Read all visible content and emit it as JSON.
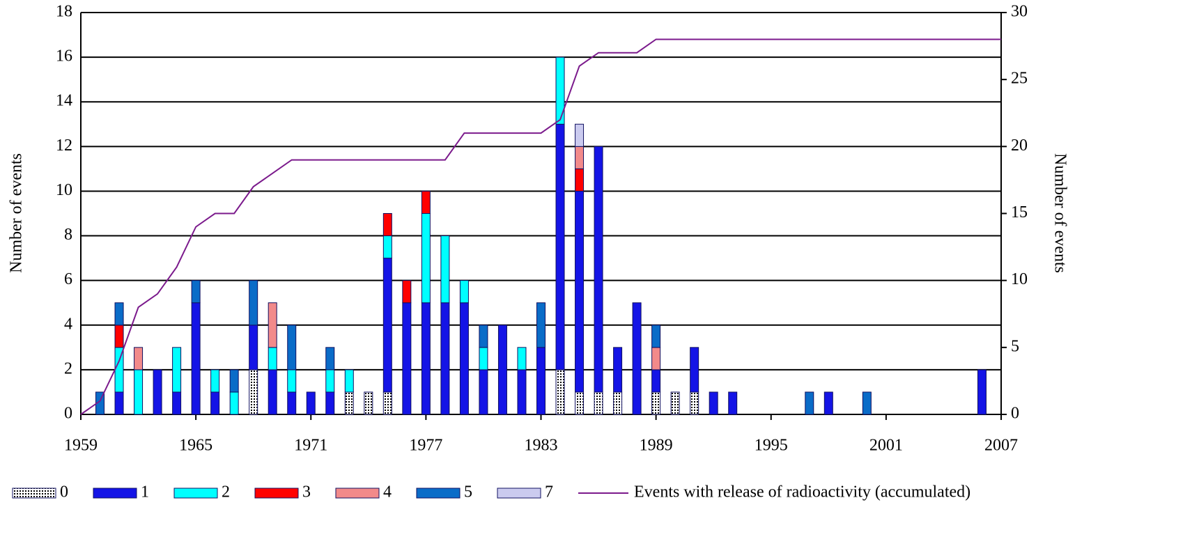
{
  "chart_data": {
    "type": "bar",
    "x": [
      1960,
      1961,
      1962,
      1963,
      1964,
      1965,
      1966,
      1967,
      1968,
      1969,
      1970,
      1971,
      1972,
      1973,
      1974,
      1975,
      1976,
      1977,
      1978,
      1979,
      1980,
      1981,
      1982,
      1983,
      1984,
      1985,
      1986,
      1987,
      1988,
      1989,
      1990,
      1991,
      1992,
      1993,
      1997,
      1998,
      2000,
      2006
    ],
    "series": [
      {
        "name": "0",
        "color": "#ffffff",
        "hatch": "dots",
        "values": [
          null,
          null,
          null,
          null,
          null,
          null,
          null,
          null,
          2,
          null,
          null,
          null,
          null,
          1,
          1,
          1,
          null,
          null,
          null,
          null,
          null,
          null,
          null,
          null,
          2,
          1,
          1,
          1,
          null,
          1,
          1,
          1,
          null,
          null,
          null,
          null,
          null,
          null
        ]
      },
      {
        "name": "1",
        "color": "#1414e6",
        "values": [
          null,
          1,
          null,
          2,
          1,
          5,
          1,
          null,
          2,
          2,
          1,
          1,
          1,
          null,
          null,
          6,
          5,
          5,
          5,
          5,
          2,
          4,
          2,
          3,
          11,
          9,
          11,
          2,
          5,
          1,
          null,
          2,
          1,
          1,
          null,
          1,
          null,
          2
        ]
      },
      {
        "name": "2",
        "color": "#00ffff",
        "values": [
          null,
          2,
          2,
          null,
          2,
          null,
          1,
          1,
          null,
          1,
          1,
          null,
          1,
          1,
          null,
          1,
          null,
          4,
          3,
          1,
          1,
          null,
          1,
          null,
          3,
          null,
          null,
          null,
          null,
          null,
          null,
          null,
          null,
          null,
          null,
          null,
          null,
          null
        ]
      },
      {
        "name": "3",
        "color": "#ff0000",
        "values": [
          null,
          1,
          null,
          null,
          null,
          null,
          null,
          null,
          null,
          null,
          null,
          null,
          null,
          null,
          null,
          1,
          1,
          1,
          null,
          null,
          null,
          null,
          null,
          null,
          null,
          1,
          null,
          null,
          null,
          null,
          null,
          null,
          null,
          null,
          null,
          null,
          null,
          null
        ]
      },
      {
        "name": "4",
        "color": "#f28a8a",
        "values": [
          null,
          null,
          1,
          null,
          null,
          null,
          null,
          null,
          null,
          2,
          null,
          null,
          null,
          null,
          null,
          null,
          null,
          null,
          null,
          null,
          null,
          null,
          null,
          null,
          null,
          1,
          null,
          null,
          null,
          1,
          null,
          null,
          null,
          null,
          null,
          null,
          null,
          null
        ]
      },
      {
        "name": "5",
        "color": "#0a6cc8",
        "values": [
          1,
          1,
          null,
          null,
          null,
          1,
          null,
          1,
          2,
          null,
          2,
          null,
          1,
          null,
          null,
          null,
          null,
          null,
          null,
          null,
          1,
          null,
          null,
          2,
          null,
          null,
          null,
          null,
          null,
          1,
          null,
          null,
          null,
          null,
          1,
          null,
          1,
          null
        ]
      },
      {
        "name": "7",
        "color": "#cbcbef",
        "values": [
          null,
          null,
          null,
          null,
          null,
          null,
          null,
          null,
          null,
          null,
          null,
          null,
          null,
          null,
          null,
          null,
          null,
          null,
          null,
          null,
          null,
          null,
          null,
          null,
          null,
          1,
          null,
          null,
          null,
          null,
          null,
          null,
          null,
          null,
          null,
          null,
          null,
          null
        ]
      }
    ],
    "line": {
      "name": "Events with release of radioactivity (accumulated)",
      "color": "#7b1a8c",
      "axis": "y2",
      "x": [
        1959,
        1960,
        1961,
        1962,
        1963,
        1964,
        1965,
        1966,
        1967,
        1968,
        1969,
        1970,
        1971,
        1972,
        1973,
        1974,
        1975,
        1976,
        1977,
        1978,
        1979,
        1980,
        1981,
        1982,
        1983,
        1984,
        1985,
        1986,
        1987,
        1988,
        1989,
        2007
      ],
      "values": [
        0,
        1,
        4,
        8,
        9,
        11,
        14,
        15,
        15,
        17,
        18,
        19,
        19,
        19,
        19,
        19,
        19,
        19,
        19,
        19,
        21,
        21,
        21,
        21,
        21,
        22,
        26,
        27,
        27,
        27,
        28,
        28
      ]
    },
    "ylabel": "Number of events",
    "y2label": "Number of events",
    "xlim": [
      1959,
      2007
    ],
    "xticks": [
      1959,
      1965,
      1971,
      1977,
      1983,
      1989,
      1995,
      2001,
      2007
    ],
    "ylim": [
      0,
      18
    ],
    "yticks": [
      0,
      2,
      4,
      6,
      8,
      10,
      12,
      14,
      16,
      18
    ],
    "y2lim": [
      0,
      30
    ],
    "y2ticks": [
      0,
      5,
      10,
      15,
      20,
      25,
      30
    ],
    "grid": true,
    "legend": "bottom"
  }
}
